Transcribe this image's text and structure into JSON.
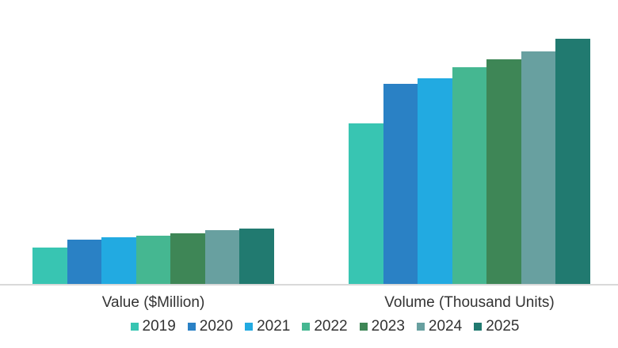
{
  "chart_data": {
    "type": "bar",
    "title": "",
    "categories": [
      "Value ($Million)",
      "Volume (Thousand Units)"
    ],
    "series": [
      {
        "name": "2019",
        "color": "#38C5B2",
        "values": [
          46.5,
          203.5
        ]
      },
      {
        "name": "2020",
        "color": "#2A81C5",
        "values": [
          56,
          253
        ]
      },
      {
        "name": "2021",
        "color": "#22AAE1",
        "values": [
          59.5,
          260
        ]
      },
      {
        "name": "2022",
        "color": "#45B791",
        "values": [
          61.5,
          274
        ]
      },
      {
        "name": "2023",
        "color": "#3E8656",
        "values": [
          64.5,
          284
        ]
      },
      {
        "name": "2024",
        "color": "#68A0A0",
        "values": [
          68.5,
          294
        ]
      },
      {
        "name": "2025",
        "color": "#217A70",
        "values": [
          70.5,
          310
        ]
      }
    ],
    "xlabel": "",
    "ylabel": "",
    "ylim": [
      0,
      361
    ],
    "grid": false,
    "y_axis_visible": false,
    "legend_position": "bottom",
    "axis_line_color": "#d9d9d9",
    "label_color": "#333333",
    "background_color": "#ffffff"
  }
}
